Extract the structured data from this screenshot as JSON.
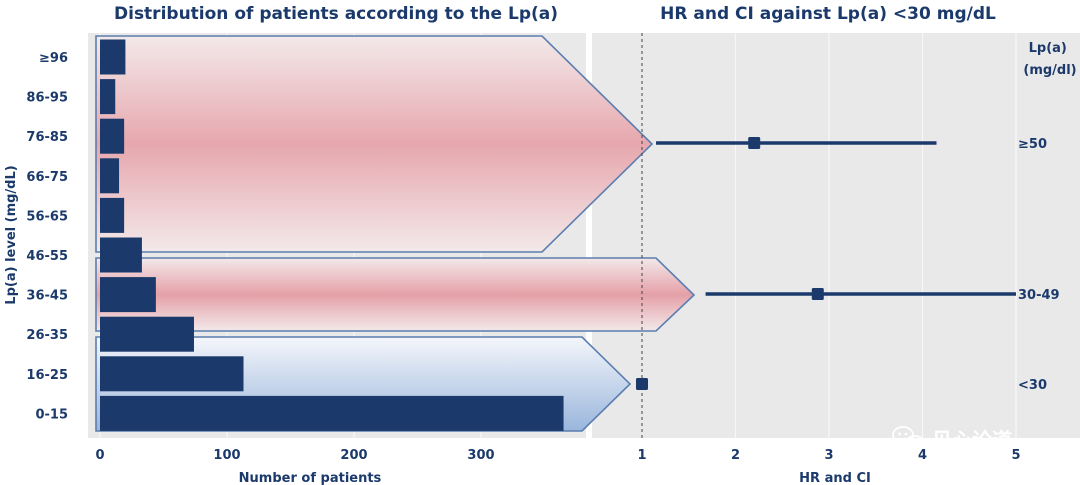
{
  "chart_data": [
    {
      "type": "bar",
      "orientation": "horizontal",
      "title": "Distribution of patients according to the Lp(a)",
      "xlabel": "Number of patients",
      "ylabel": "Lp(a) level (mg/dL)",
      "categories": [
        "≥96",
        "86-95",
        "76-85",
        "66-75",
        "56-65",
        "46-55",
        "36-45",
        "26-35",
        "16-25",
        "0-15"
      ],
      "values": [
        20,
        12,
        19,
        15,
        19,
        33,
        44,
        74,
        113,
        365
      ],
      "xlim": [
        0,
        380
      ],
      "xticks": [
        "0",
        "100",
        "200",
        "300"
      ],
      "bar_color": "#1b3a6b",
      "bands": [
        {
          "label": "≥50",
          "from": "≥96",
          "to": "56-65",
          "color": "#e8a0a6"
        },
        {
          "label": "30-49",
          "from": "46-55",
          "to": "36-45",
          "color": "#e8a0a6"
        },
        {
          "label": "<30",
          "from": "26-35",
          "to": "0-15",
          "color": "#9ab6dc"
        }
      ]
    },
    {
      "type": "forest",
      "title": "HR and CI against Lp(a) <30 mg/dL",
      "xlabel": "HR and CI",
      "legend_title": "Lp(a)\n(mg/dl)",
      "xlim": [
        0.6,
        5
      ],
      "xticks": [
        "1",
        "2",
        "3",
        "4",
        "5"
      ],
      "reference_line": 1,
      "rows": [
        {
          "group": "≥50",
          "hr": 2.2,
          "ci_low": 1.15,
          "ci_high": 4.15
        },
        {
          "group": "30-49",
          "hr": 2.88,
          "ci_low": 1.68,
          "ci_high": 5.0
        },
        {
          "group": "<30",
          "hr": 1.0,
          "ci_low": null,
          "ci_high": null
        }
      ],
      "marker_color": "#1b3a6b"
    }
  ],
  "watermark": "见心论道"
}
